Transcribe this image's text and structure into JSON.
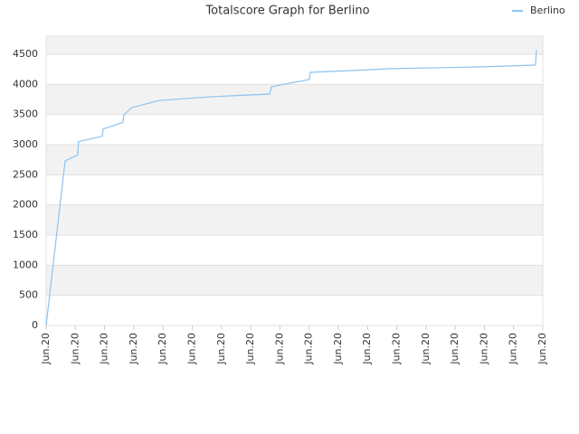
{
  "chart_data": {
    "type": "line",
    "title": "Totalscore Graph for Berlino",
    "legend": "top-right",
    "grid": true,
    "x": [
      0,
      0.65,
      1.08,
      1.11,
      1.92,
      1.95,
      2.63,
      2.66,
      2.91,
      3.84,
      4.61,
      5.85,
      7.65,
      7.71,
      8.33,
      9.01,
      9.04,
      10.5,
      11.74,
      14.83,
      16.75,
      16.78
    ],
    "series": [
      {
        "name": "Berlino",
        "color": "#8ec3ef",
        "values": [
          0,
          2730,
          2830,
          3050,
          3140,
          3260,
          3370,
          3490,
          3610,
          3730,
          3760,
          3800,
          3840,
          3960,
          4020,
          4080,
          4200,
          4230,
          4260,
          4290,
          4320,
          4570
        ]
      }
    ],
    "xlim": [
      0,
      17
    ],
    "xticks": [
      {
        "value": 0,
        "label": "Jun.20"
      },
      {
        "value": 1,
        "label": "Jun.20"
      },
      {
        "value": 2,
        "label": "Jun.20"
      },
      {
        "value": 3,
        "label": "Jun.20"
      },
      {
        "value": 4,
        "label": "Jun.20"
      },
      {
        "value": 5,
        "label": "Jun.20"
      },
      {
        "value": 6,
        "label": "Jun.20"
      },
      {
        "value": 7,
        "label": "Jun.20"
      },
      {
        "value": 8,
        "label": "Jun.20"
      },
      {
        "value": 9,
        "label": "Jun.20"
      },
      {
        "value": 10,
        "label": "Jun.20"
      },
      {
        "value": 11,
        "label": "Jun.20"
      },
      {
        "value": 12,
        "label": "Jun.20"
      },
      {
        "value": 13,
        "label": "Jun.20"
      },
      {
        "value": 14,
        "label": "Jun.20"
      },
      {
        "value": 15,
        "label": "Jun.20"
      },
      {
        "value": 16,
        "label": "Jun.20"
      },
      {
        "value": 17,
        "label": "Jun.20"
      }
    ],
    "ylim": [
      0,
      4800
    ],
    "yticks": [
      0,
      500,
      1000,
      1500,
      2000,
      2500,
      3000,
      3500,
      4000,
      4500
    ]
  }
}
